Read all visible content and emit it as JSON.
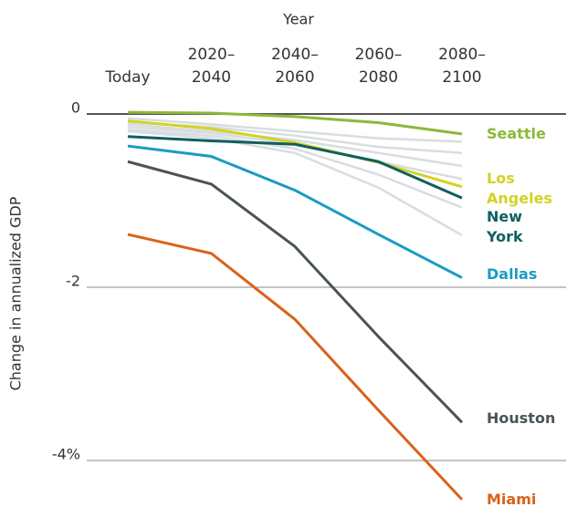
{
  "chart_data": {
    "type": "line",
    "x_label": "Year",
    "y_label": "Change in annualized GDP",
    "categories": [
      "Today",
      "2020–2040",
      "2040–2060",
      "2060–2080",
      "2080–2100"
    ],
    "ylim": [
      -4.5,
      0.2
    ],
    "yticks": [
      {
        "value": 0,
        "label": "0"
      },
      {
        "value": -2,
        "label": "-2"
      },
      {
        "value": -4,
        "label": "-4%"
      }
    ],
    "grid": true,
    "series": [
      {
        "name": "Seattle",
        "color": "#8db83b",
        "values": [
          0.02,
          0.01,
          -0.03,
          -0.1,
          -0.23
        ]
      },
      {
        "name": "Los Angeles",
        "color": "#d2d325",
        "values": [
          -0.08,
          -0.17,
          -0.33,
          -0.56,
          -0.84
        ]
      },
      {
        "name": "New York",
        "color": "#0f5f5f",
        "values": [
          -0.26,
          -0.31,
          -0.35,
          -0.55,
          -0.97
        ]
      },
      {
        "name": "Dallas",
        "color": "#1a9bc4",
        "values": [
          -0.37,
          -0.49,
          -0.88,
          -1.39,
          -1.89
        ]
      },
      {
        "name": "Houston",
        "color": "#4a5358",
        "values": [
          -0.55,
          -0.81,
          -1.53,
          -2.57,
          -3.56
        ]
      },
      {
        "name": "Miami",
        "color": "#d9621a",
        "values": [
          -1.39,
          -1.61,
          -2.37,
          -3.42,
          -4.45
        ]
      }
    ],
    "background_color": "#d8dde0",
    "background_series": [
      {
        "values": [
          -0.05,
          -0.12,
          -0.2,
          -0.28,
          -0.32
        ]
      },
      {
        "values": [
          -0.1,
          -0.15,
          -0.25,
          -0.38,
          -0.45
        ]
      },
      {
        "values": [
          -0.12,
          -0.2,
          -0.3,
          -0.45,
          -0.6
        ]
      },
      {
        "values": [
          -0.15,
          -0.22,
          -0.35,
          -0.55,
          -0.75
        ]
      },
      {
        "values": [
          -0.18,
          -0.25,
          -0.4,
          -0.7,
          -1.08
        ]
      },
      {
        "values": [
          -0.2,
          -0.28,
          -0.45,
          -0.85,
          -1.4
        ]
      }
    ]
  }
}
